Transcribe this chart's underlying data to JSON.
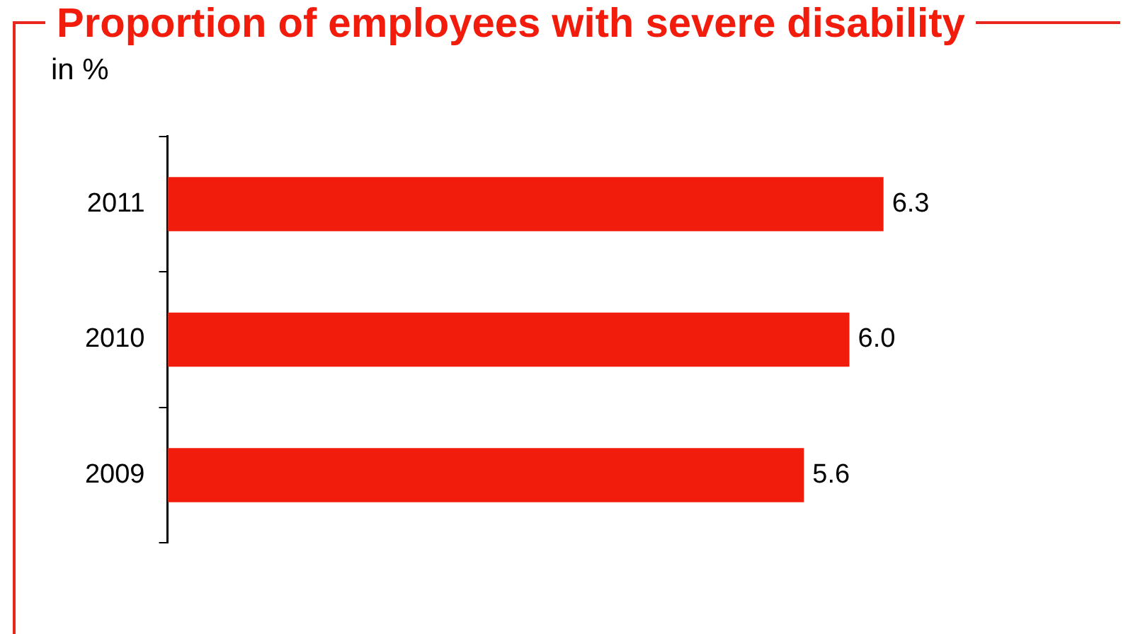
{
  "chart_data": {
    "type": "bar",
    "orientation": "horizontal",
    "title": "Proportion of employees with severe disability",
    "subtitle": "in %",
    "categories": [
      "2011",
      "2010",
      "2009"
    ],
    "series": [
      {
        "color": "#f21c0c",
        "values": [
          6.3,
          6.0,
          5.6
        ],
        "value_labels": [
          "6.3",
          "6.0",
          "5.6"
        ]
      }
    ],
    "grid": false,
    "legend": false
  }
}
